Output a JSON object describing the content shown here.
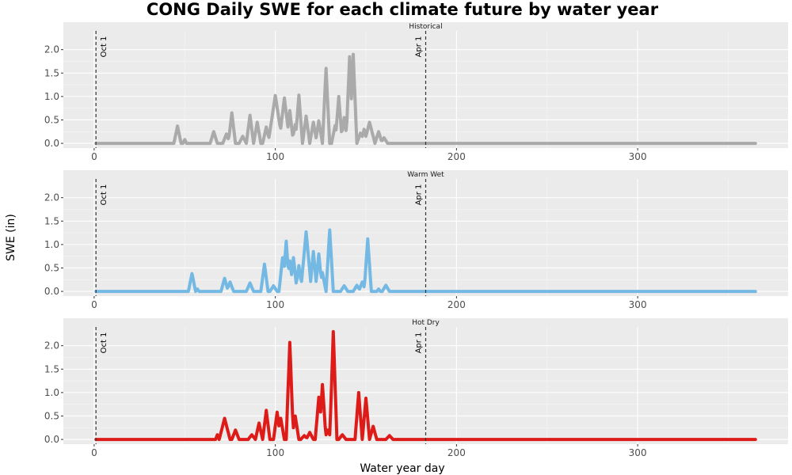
{
  "chart_data": {
    "type": "line",
    "title": "CONG Daily SWE for each climate future by water year",
    "xlabel": "Water year day",
    "ylabel": "SWE (in)",
    "xlim": [
      -17,
      383
    ],
    "ylim": [
      -0.1,
      2.4
    ],
    "x_ticks": [
      0,
      100,
      200,
      300
    ],
    "y_ticks": [
      0.0,
      0.5,
      1.0,
      1.5,
      2.0
    ],
    "y_tick_labels": [
      "0.0",
      "0.5",
      "1.0",
      "1.5",
      "2.0"
    ],
    "grid": true,
    "vlines": [
      {
        "x": 1,
        "label": "Oct 1"
      },
      {
        "x": 183,
        "label": "Apr 1"
      }
    ],
    "facets": [
      {
        "name": "Historical",
        "color": "#aaaaaa",
        "x_range": [
          1,
          365
        ],
        "peaks": [
          [
            46,
            0.37,
            2
          ],
          [
            50,
            0.08,
            1
          ],
          [
            66,
            0.25,
            2
          ],
          [
            73,
            0.2,
            2
          ],
          [
            76,
            0.65,
            2
          ],
          [
            82,
            0.15,
            2
          ],
          [
            86,
            0.6,
            2
          ],
          [
            90,
            0.45,
            2
          ],
          [
            95,
            0.35,
            2
          ],
          [
            100,
            1.02,
            4
          ],
          [
            105,
            0.97,
            3
          ],
          [
            108,
            0.7,
            2
          ],
          [
            111,
            0.4,
            2
          ],
          [
            113,
            1.03,
            2
          ],
          [
            117,
            0.58,
            2
          ],
          [
            121,
            0.45,
            2
          ],
          [
            124,
            0.48,
            2
          ],
          [
            128,
            1.6,
            2
          ],
          [
            133,
            0.38,
            2
          ],
          [
            135,
            1.0,
            2
          ],
          [
            138,
            0.55,
            2
          ],
          [
            141,
            1.85,
            2
          ],
          [
            143,
            1.9,
            2
          ],
          [
            147,
            0.22,
            2
          ],
          [
            149,
            0.3,
            2
          ],
          [
            152,
            0.45,
            3
          ],
          [
            157,
            0.25,
            2
          ],
          [
            160,
            0.12,
            2
          ]
        ]
      },
      {
        "name": "Warm Wet",
        "color": "#74b9e4",
        "x_range": [
          1,
          365
        ],
        "peaks": [
          [
            54,
            0.38,
            2
          ],
          [
            57,
            0.05,
            1
          ],
          [
            72,
            0.28,
            2
          ],
          [
            75,
            0.2,
            2
          ],
          [
            86,
            0.18,
            2
          ],
          [
            94,
            0.58,
            2
          ],
          [
            99,
            0.12,
            2
          ],
          [
            104,
            0.72,
            2
          ],
          [
            106,
            1.07,
            2
          ],
          [
            108,
            0.65,
            2
          ],
          [
            110,
            0.72,
            2
          ],
          [
            113,
            0.55,
            2
          ],
          [
            117,
            1.27,
            3
          ],
          [
            121,
            0.85,
            2
          ],
          [
            124,
            0.8,
            2
          ],
          [
            126,
            0.4,
            2
          ],
          [
            130,
            1.31,
            2
          ],
          [
            138,
            0.12,
            2
          ],
          [
            145,
            0.13,
            2
          ],
          [
            148,
            0.2,
            2
          ],
          [
            151,
            1.12,
            2
          ],
          [
            157,
            0.05,
            1
          ],
          [
            161,
            0.13,
            2
          ]
        ]
      },
      {
        "name": "Hot Dry",
        "color": "#dd1c1a",
        "x_range": [
          1,
          365
        ],
        "peaks": [
          [
            68,
            0.1,
            1
          ],
          [
            72,
            0.45,
            3
          ],
          [
            78,
            0.2,
            2
          ],
          [
            87,
            0.1,
            2
          ],
          [
            91,
            0.35,
            2
          ],
          [
            95,
            0.62,
            2
          ],
          [
            101,
            0.58,
            2
          ],
          [
            103,
            0.45,
            2
          ],
          [
            108,
            2.07,
            2
          ],
          [
            111,
            0.5,
            2
          ],
          [
            116,
            0.08,
            2
          ],
          [
            119,
            0.15,
            2
          ],
          [
            124,
            0.9,
            2
          ],
          [
            126,
            1.17,
            2
          ],
          [
            129,
            0.2,
            2
          ],
          [
            132,
            2.3,
            2
          ],
          [
            137,
            0.1,
            2
          ],
          [
            146,
            1.0,
            2
          ],
          [
            150,
            0.88,
            2
          ],
          [
            154,
            0.28,
            2
          ],
          [
            163,
            0.08,
            2
          ]
        ]
      }
    ]
  }
}
